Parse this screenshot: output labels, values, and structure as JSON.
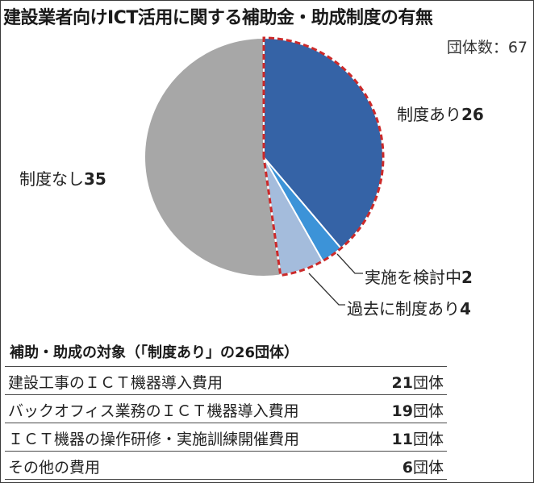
{
  "title": "建設業者向けICT活用に関する補助金・助成制度の有無",
  "group_count": "団体数：67",
  "chart_data": {
    "type": "pie",
    "total": 67,
    "slices": [
      {
        "name": "制度あり",
        "value": 26,
        "color": "#3563a6"
      },
      {
        "name": "実施を検討中",
        "value": 2,
        "color": "#3c93d8"
      },
      {
        "name": "過去に制度あり",
        "value": 4,
        "color": "#a4bcdc"
      },
      {
        "name": "制度なし",
        "value": 35,
        "color": "#a7a7a7"
      }
    ],
    "highlight_color": "#cc2a2a"
  },
  "labels": {
    "ari_name": "制度あり",
    "ari_value": "26",
    "kento_name": "実施を検討中",
    "kento_value": "2",
    "kako_name": "過去に制度あり",
    "kako_value": "4",
    "nashi_name": "制度なし",
    "nashi_value": "35"
  },
  "targets": {
    "heading": "補助・助成の対象（「制度あり」の26団体）",
    "unit": "団体",
    "rows": [
      {
        "name": "建設工事のＩＣＴ機器導入費用",
        "value": "21"
      },
      {
        "name": "バックオフィス業務のＩＣＴ機器導入費用",
        "value": "19"
      },
      {
        "name": "ＩＣＴ機器の操作研修・実施訓練開催費用",
        "value": "11"
      },
      {
        "name": "その他の費用",
        "value": "6"
      }
    ]
  }
}
